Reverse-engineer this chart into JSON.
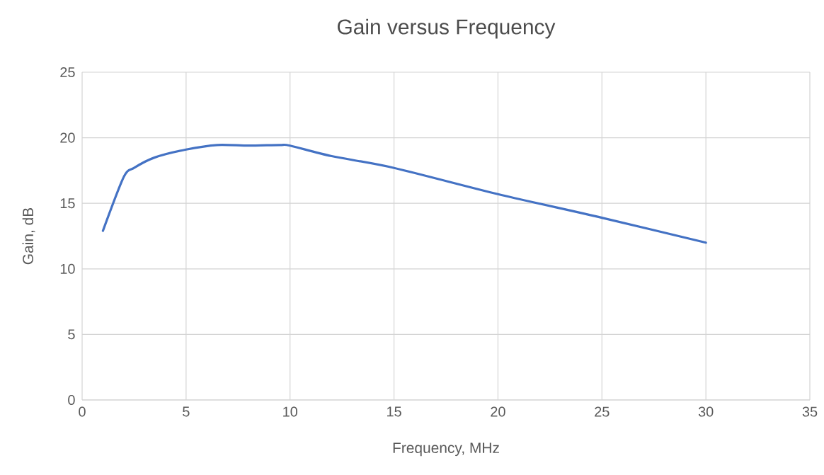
{
  "chart_data": {
    "type": "line",
    "title": "Gain versus Frequency",
    "xlabel": "Frequency, MHz",
    "ylabel": "Gain, dB",
    "series": [
      {
        "color": "#4472c4",
        "x": [
          1,
          2,
          2.5,
          3.5,
          5,
          6.5,
          8,
          9.5,
          10,
          12,
          15,
          20,
          25,
          30
        ],
        "values": [
          12.9,
          17.0,
          17.7,
          18.5,
          19.1,
          19.45,
          19.4,
          19.45,
          19.4,
          18.6,
          17.7,
          15.7,
          13.9,
          12.0
        ]
      }
    ],
    "xlim": [
      0,
      35
    ],
    "xticks": [
      0,
      5,
      10,
      15,
      20,
      25,
      30,
      35
    ],
    "ylim": [
      0,
      25
    ],
    "yticks": [
      0,
      5,
      10,
      15,
      20,
      25
    ],
    "grid": true,
    "marker": "none",
    "line_style": "solid"
  }
}
